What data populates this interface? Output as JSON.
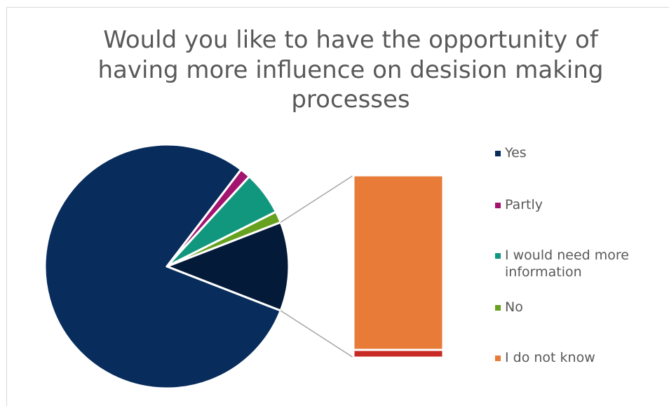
{
  "chart_data": {
    "type": "pie",
    "subtype": "bar-of-pie",
    "title": "Would you like to have the opportunity of having more influence on desision making processes",
    "series": [
      {
        "labels": [
          "Yes",
          "Partly",
          "I would need more information",
          "No",
          "I do not know",
          ""
        ],
        "values": [
          79.5,
          1.4,
          5.8,
          1.5,
          11.3,
          0.5
        ]
      }
    ],
    "colors": [
      "#082c5c",
      "#a3146f",
      "#12977f",
      "#66a11f",
      "#e87b37",
      "#c82a26"
    ],
    "secondary_slice_color": "#041a39",
    "secondary_values_in_bar": [
      11.3,
      0.5
    ],
    "legend": [
      "Yes",
      "Partly",
      "I would need more information",
      "No",
      "I do not know"
    ],
    "legend_position": "right"
  }
}
